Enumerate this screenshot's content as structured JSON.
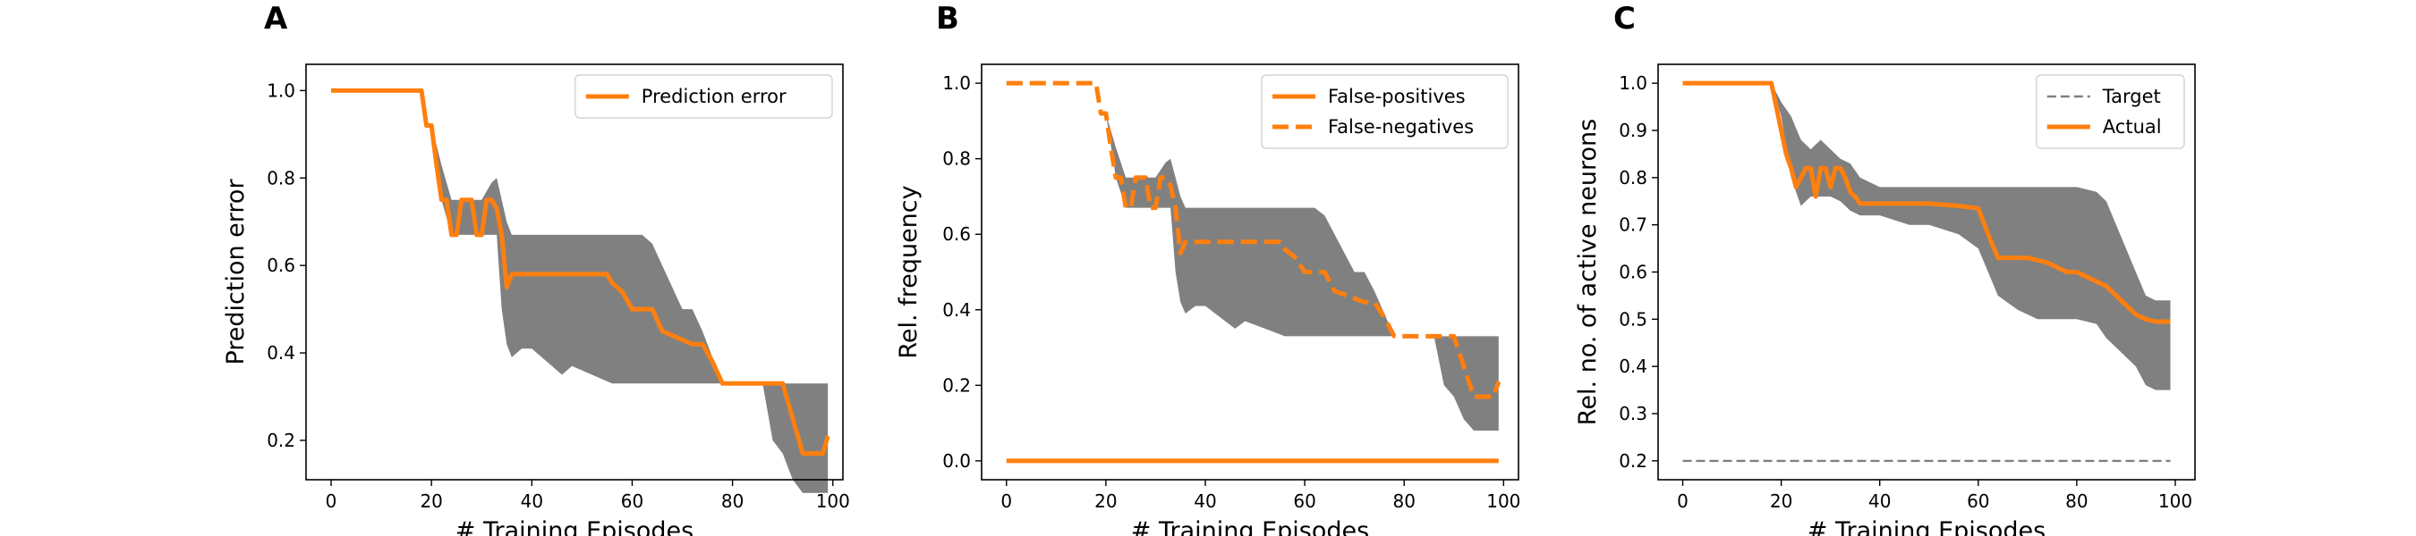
{
  "colors": {
    "orange": "#ff7f0e",
    "band": "#808080",
    "target": "#808080"
  },
  "chart_data": [
    {
      "type": "line",
      "panel_label": "A",
      "xlabel": "# Training Episodes",
      "ylabel": "Prediction error",
      "xlim": [
        -5,
        102
      ],
      "ylim": [
        0.11,
        1.06
      ],
      "xticks": [
        0,
        20,
        40,
        60,
        80,
        100
      ],
      "yticks": [
        0.2,
        0.4,
        0.6,
        0.8,
        1.0
      ],
      "ytick_labels": [
        "0.2",
        "0.4",
        "0.6",
        "0.8",
        "1.0"
      ],
      "legend_position": "top-right",
      "series": [
        {
          "name": "Prediction error",
          "style": "solid",
          "color": "#ff7f0e",
          "x": [
            0,
            18,
            19,
            20,
            21,
            22,
            23,
            24,
            25,
            26,
            27,
            28,
            29,
            30,
            31,
            32,
            33,
            34,
            35,
            36,
            37,
            55,
            56,
            58,
            60,
            64,
            66,
            72,
            74,
            76,
            78,
            90,
            92,
            94,
            98,
            99
          ],
          "y": [
            1.0,
            1.0,
            0.92,
            0.92,
            0.83,
            0.75,
            0.75,
            0.67,
            0.67,
            0.75,
            0.75,
            0.75,
            0.67,
            0.67,
            0.75,
            0.75,
            0.73,
            0.67,
            0.55,
            0.58,
            0.58,
            0.58,
            0.56,
            0.54,
            0.5,
            0.5,
            0.45,
            0.42,
            0.42,
            0.38,
            0.33,
            0.33,
            0.25,
            0.17,
            0.17,
            0.21
          ]
        }
      ],
      "band": {
        "x": [
          0,
          18,
          20,
          22,
          24,
          26,
          28,
          30,
          32,
          33,
          34,
          35,
          36,
          38,
          40,
          44,
          46,
          48,
          52,
          56,
          58,
          62,
          64,
          66,
          70,
          72,
          74,
          78,
          84,
          86,
          88,
          90,
          92,
          94,
          96,
          98,
          99
        ],
        "upper": [
          1.0,
          1.0,
          0.92,
          0.83,
          0.75,
          0.75,
          0.75,
          0.75,
          0.79,
          0.8,
          0.75,
          0.7,
          0.67,
          0.67,
          0.67,
          0.67,
          0.67,
          0.67,
          0.67,
          0.67,
          0.67,
          0.67,
          0.65,
          0.6,
          0.5,
          0.5,
          0.45,
          0.33,
          0.33,
          0.33,
          0.33,
          0.33,
          0.33,
          0.33,
          0.33,
          0.33,
          0.33
        ],
        "lower": [
          1.0,
          1.0,
          0.92,
          0.75,
          0.67,
          0.67,
          0.67,
          0.67,
          0.67,
          0.67,
          0.5,
          0.42,
          0.39,
          0.41,
          0.41,
          0.37,
          0.35,
          0.37,
          0.35,
          0.33,
          0.33,
          0.33,
          0.33,
          0.33,
          0.33,
          0.33,
          0.33,
          0.33,
          0.33,
          0.33,
          0.2,
          0.17,
          0.11,
          0.08,
          0.08,
          0.08,
          0.08
        ]
      }
    },
    {
      "type": "line",
      "panel_label": "B",
      "xlabel": "# Training Episodes",
      "ylabel": "Rel. frequency",
      "xlim": [
        -5,
        103
      ],
      "ylim": [
        -0.05,
        1.05
      ],
      "xticks": [
        0,
        20,
        40,
        60,
        80,
        100
      ],
      "yticks": [
        0.0,
        0.2,
        0.4,
        0.6,
        0.8,
        1.0
      ],
      "ytick_labels": [
        "0.0",
        "0.2",
        "0.4",
        "0.6",
        "0.8",
        "1.0"
      ],
      "legend_position": "top-right",
      "series": [
        {
          "name": "False-positives",
          "style": "solid",
          "color": "#ff7f0e",
          "x": [
            0,
            99
          ],
          "y": [
            0.0,
            0.0
          ]
        },
        {
          "name": "False-negatives",
          "style": "dashed",
          "color": "#ff7f0e",
          "x": [
            0,
            18,
            19,
            20,
            21,
            22,
            23,
            24,
            25,
            26,
            27,
            28,
            29,
            30,
            31,
            32,
            33,
            34,
            35,
            36,
            37,
            55,
            56,
            58,
            60,
            64,
            66,
            72,
            74,
            76,
            78,
            90,
            92,
            94,
            98,
            99
          ],
          "y": [
            1.0,
            1.0,
            0.92,
            0.92,
            0.83,
            0.75,
            0.75,
            0.67,
            0.67,
            0.75,
            0.75,
            0.75,
            0.67,
            0.67,
            0.75,
            0.75,
            0.73,
            0.67,
            0.55,
            0.58,
            0.58,
            0.58,
            0.56,
            0.54,
            0.5,
            0.5,
            0.45,
            0.42,
            0.42,
            0.38,
            0.33,
            0.33,
            0.25,
            0.17,
            0.17,
            0.21
          ]
        }
      ],
      "band": {
        "x": [
          0,
          18,
          20,
          22,
          24,
          26,
          28,
          30,
          32,
          33,
          34,
          35,
          36,
          38,
          40,
          44,
          46,
          48,
          52,
          56,
          58,
          62,
          64,
          66,
          70,
          72,
          74,
          78,
          84,
          86,
          88,
          90,
          92,
          94,
          96,
          98,
          99
        ],
        "upper": [
          1.0,
          1.0,
          0.92,
          0.83,
          0.75,
          0.75,
          0.75,
          0.75,
          0.79,
          0.8,
          0.75,
          0.7,
          0.67,
          0.67,
          0.67,
          0.67,
          0.67,
          0.67,
          0.67,
          0.67,
          0.67,
          0.67,
          0.65,
          0.6,
          0.5,
          0.5,
          0.45,
          0.33,
          0.33,
          0.33,
          0.33,
          0.33,
          0.33,
          0.33,
          0.33,
          0.33,
          0.33
        ],
        "lower": [
          1.0,
          1.0,
          0.92,
          0.75,
          0.67,
          0.67,
          0.67,
          0.67,
          0.67,
          0.67,
          0.5,
          0.42,
          0.39,
          0.41,
          0.41,
          0.37,
          0.35,
          0.37,
          0.35,
          0.33,
          0.33,
          0.33,
          0.33,
          0.33,
          0.33,
          0.33,
          0.33,
          0.33,
          0.33,
          0.33,
          0.2,
          0.17,
          0.11,
          0.08,
          0.08,
          0.08,
          0.08
        ]
      }
    },
    {
      "type": "line",
      "panel_label": "C",
      "xlabel": "# Training Episodes",
      "ylabel": "Rel. no. of active neurons",
      "xlim": [
        -5,
        104
      ],
      "ylim": [
        0.16,
        1.04
      ],
      "xticks": [
        0,
        20,
        40,
        60,
        80,
        100
      ],
      "yticks": [
        0.2,
        0.3,
        0.4,
        0.5,
        0.6,
        0.7,
        0.8,
        0.9,
        1.0
      ],
      "ytick_labels": [
        "0.2",
        "0.3",
        "0.4",
        "0.5",
        "0.6",
        "0.7",
        "0.8",
        "0.9",
        "1.0"
      ],
      "legend_position": "top-right",
      "series": [
        {
          "name": "Target",
          "style": "dashed-thin",
          "color": "#808080",
          "x": [
            0,
            99
          ],
          "y": [
            0.2,
            0.2
          ]
        },
        {
          "name": "Actual",
          "style": "solid",
          "color": "#ff7f0e",
          "x": [
            0,
            18,
            19,
            20,
            21,
            22,
            23,
            24,
            25,
            26,
            27,
            28,
            29,
            30,
            31,
            32,
            33,
            34,
            35,
            36,
            38,
            40,
            50,
            56,
            60,
            62,
            64,
            66,
            70,
            74,
            76,
            78,
            80,
            82,
            84,
            86,
            88,
            90,
            92,
            94,
            96,
            99
          ],
          "y": [
            1.0,
            1.0,
            0.95,
            0.9,
            0.85,
            0.82,
            0.78,
            0.8,
            0.82,
            0.82,
            0.76,
            0.82,
            0.82,
            0.78,
            0.82,
            0.82,
            0.8,
            0.77,
            0.76,
            0.745,
            0.745,
            0.745,
            0.745,
            0.74,
            0.735,
            0.68,
            0.63,
            0.63,
            0.63,
            0.62,
            0.61,
            0.6,
            0.6,
            0.59,
            0.58,
            0.57,
            0.55,
            0.53,
            0.51,
            0.5,
            0.495,
            0.495
          ]
        }
      ],
      "band": {
        "x": [
          0,
          18,
          20,
          22,
          24,
          26,
          28,
          30,
          32,
          34,
          36,
          40,
          46,
          50,
          56,
          60,
          64,
          68,
          72,
          76,
          80,
          84,
          86,
          88,
          90,
          92,
          94,
          96,
          99
        ],
        "upper": [
          1.0,
          1.0,
          0.96,
          0.93,
          0.88,
          0.86,
          0.88,
          0.86,
          0.84,
          0.83,
          0.8,
          0.78,
          0.78,
          0.78,
          0.78,
          0.78,
          0.78,
          0.78,
          0.78,
          0.78,
          0.78,
          0.77,
          0.75,
          0.7,
          0.65,
          0.6,
          0.55,
          0.54,
          0.54
        ],
        "lower": [
          1.0,
          1.0,
          0.93,
          0.8,
          0.74,
          0.76,
          0.76,
          0.76,
          0.75,
          0.73,
          0.72,
          0.72,
          0.7,
          0.7,
          0.68,
          0.65,
          0.55,
          0.52,
          0.5,
          0.5,
          0.5,
          0.49,
          0.46,
          0.44,
          0.42,
          0.4,
          0.36,
          0.35,
          0.35
        ]
      }
    }
  ]
}
